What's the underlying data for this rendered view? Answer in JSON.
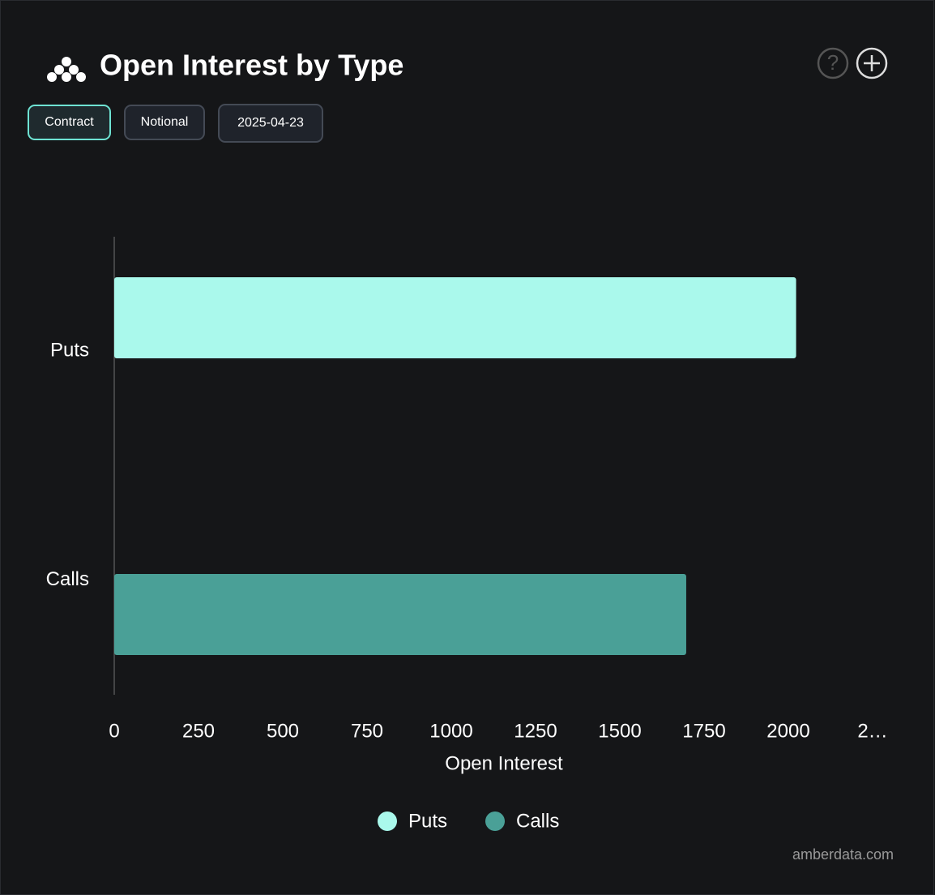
{
  "chart_data": {
    "type": "hbar",
    "title": "Open Interest by Type",
    "categories": [
      "Puts",
      "Calls"
    ],
    "series": [
      {
        "name": "Puts",
        "color": "#aaf9ec",
        "values": [
          2023,
          null
        ]
      },
      {
        "name": "Calls",
        "color": "#4aa097",
        "values": [
          null,
          1697
        ]
      }
    ],
    "xlabel": "Open Interest",
    "xlim": [
      0,
      2250
    ],
    "xticks": [
      0,
      250,
      500,
      750,
      1000,
      1250,
      1500,
      1750,
      2000,
      {
        "value": 2250,
        "label": "2…"
      }
    ],
    "legend": "bottom"
  },
  "buttons": [
    "Contract",
    "Notional",
    "2025-04-23"
  ],
  "footer": "amberdata.com"
}
